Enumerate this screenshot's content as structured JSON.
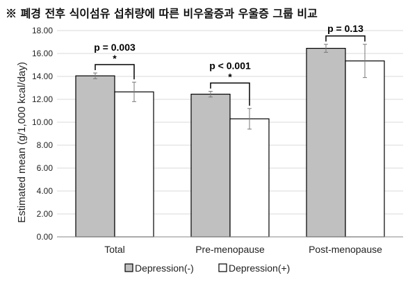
{
  "chart_data": {
    "type": "bar",
    "title": "※ 폐경 전후 식이섬유 섭취량에 따른 비우울증과 우울증 그룹 비교",
    "ylabel": "Estimated mean (g/1,000 kcal/day)",
    "xlabel": "",
    "ylim": [
      0,
      18
    ],
    "yticks": [
      "0.00",
      "2.00",
      "4.00",
      "6.00",
      "8.00",
      "10.00",
      "12.00",
      "14.00",
      "16.00",
      "18.00"
    ],
    "grid": true,
    "legend_position": "bottom",
    "categories": [
      "Total",
      "Pre-menopause",
      "Post-menopause"
    ],
    "series": [
      {
        "name": "Depression(-)",
        "color": "#c0c0c0",
        "values": [
          14.05,
          12.45,
          16.45
        ],
        "err": [
          0.25,
          0.25,
          0.35
        ]
      },
      {
        "name": "Depression(+)",
        "color": "#ffffff",
        "values": [
          12.65,
          10.3,
          15.35
        ],
        "err": [
          0.85,
          0.9,
          1.45
        ]
      }
    ],
    "annotations": [
      {
        "category": "Total",
        "text": "p = 0.003",
        "significant": true
      },
      {
        "category": "Pre-menopause",
        "text": "p < 0.001",
        "significant": true
      },
      {
        "category": "Post-menopause",
        "text": "p = 0.13",
        "significant": false
      }
    ],
    "significance_mark": "*"
  }
}
